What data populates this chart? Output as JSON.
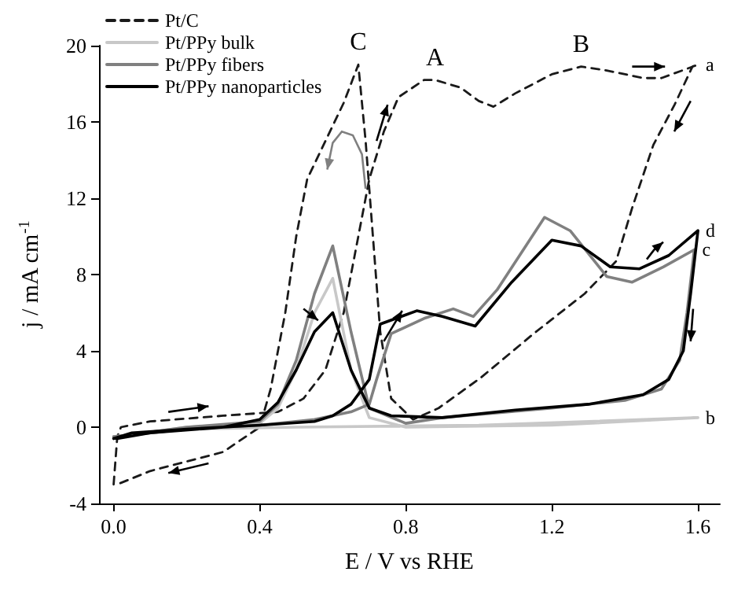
{
  "chart_data": {
    "type": "line",
    "xlabel": "E / V vs RHE",
    "ylabel": "j / mA cm$^{-1}$",
    "xlim": [
      -0.04,
      1.66
    ],
    "xticks": [
      {
        "value": 0,
        "label": "0.0"
      },
      0.4,
      0.8,
      1.2,
      1.6
    ],
    "ylim": [
      -4,
      20
    ],
    "yticks": [
      -4,
      0,
      4,
      8,
      12,
      16,
      20
    ],
    "grid": false,
    "legend": "top left",
    "marker": "none",
    "series": [
      {
        "name": "Pt/C",
        "color": "#1a1a1a",
        "line_style": "dashed",
        "x": [
          0.0,
          0.01,
          0.02,
          0.1,
          0.3,
          0.45,
          0.52,
          0.58,
          0.63,
          0.66,
          0.7,
          0.74,
          0.78,
          0.85,
          0.88,
          0.95,
          1.0,
          1.04,
          1.1,
          1.2,
          1.28,
          1.35,
          1.45,
          1.5,
          1.6,
          1.585,
          1.536,
          1.478,
          1.42,
          1.376,
          1.29,
          1.15,
          1.006,
          0.89,
          0.82,
          0.76,
          0.73,
          0.71,
          0.69,
          0.67,
          0.63,
          0.58,
          0.53,
          0.5,
          0.47,
          0.43,
          0.4,
          0.3,
          0.2,
          0.1,
          0.01
        ],
        "values": [
          -3,
          -0.5,
          0,
          0.3,
          0.6,
          0.8,
          1.5,
          3,
          6,
          9,
          13,
          15.5,
          17.3,
          18.2,
          18.2,
          17.8,
          17.1,
          16.8,
          17.5,
          18.5,
          18.9,
          18.7,
          18.3,
          18.3,
          19,
          18.9,
          16.9,
          14.8,
          11.5,
          8.7,
          7.0,
          4.9,
          2.6,
          1.0,
          0.4,
          1.5,
          5,
          10,
          15,
          19,
          17,
          15,
          13,
          10,
          6,
          2,
          0,
          -1.3,
          -1.8,
          -2.3,
          -3
        ]
      },
      {
        "name": "Pt/PPy bulk",
        "color": "#c8c8c8",
        "line_style": "solid",
        "x": [
          0.0,
          0.2,
          0.5,
          1.0,
          1.6,
          1.2,
          0.8,
          0.7,
          0.65,
          0.6,
          0.55,
          0.5,
          0.45,
          0.4,
          0.2,
          0.01
        ],
        "values": [
          -0.5,
          -0.1,
          0,
          0.1,
          0.5,
          0.1,
          0,
          0.5,
          3,
          7.8,
          6,
          3,
          1,
          0.2,
          0,
          -0.5
        ]
      },
      {
        "name": "Pt/PPy fibers",
        "color": "#808080",
        "line_style": "solid",
        "x": [
          0.0,
          0.2,
          0.4,
          0.55,
          0.65,
          0.7,
          0.72,
          0.76,
          0.85,
          0.93,
          0.985,
          1.05,
          1.18,
          1.25,
          1.35,
          1.42,
          1.505,
          1.59,
          1.57,
          1.55,
          1.5,
          1.4,
          1.2,
          0.9,
          0.8,
          0.7,
          0.65,
          0.6,
          0.55,
          0.5,
          0.45,
          0.4,
          0.2,
          0.01
        ],
        "values": [
          -0.5,
          -0.1,
          0.1,
          0.4,
          0.8,
          1.2,
          2.5,
          4.9,
          5.7,
          6.2,
          5.8,
          7.2,
          11.0,
          10.3,
          7.9,
          7.6,
          8.4,
          9.3,
          6,
          3.5,
          2,
          1.4,
          1.0,
          0.5,
          0.2,
          1,
          5,
          9.5,
          7,
          3.5,
          1.2,
          0.3,
          0,
          -0.5
        ]
      },
      {
        "name": "Pt/PPy nanoparticles",
        "color": "#000000",
        "line_style": "solid",
        "x": [
          0.0,
          0.05,
          0.2,
          0.4,
          0.55,
          0.6,
          0.65,
          0.7,
          0.73,
          0.83,
          0.9,
          0.99,
          1.09,
          1.2,
          1.28,
          1.36,
          1.44,
          1.52,
          1.6,
          1.58,
          1.56,
          1.52,
          1.45,
          1.3,
          1.1,
          0.9,
          0.76,
          0.7,
          0.65,
          0.6,
          0.55,
          0.5,
          0.45,
          0.4,
          0.3,
          0.1,
          0.01
        ],
        "values": [
          -0.6,
          -0.3,
          -0.1,
          0.1,
          0.3,
          0.6,
          1.2,
          2.5,
          5.4,
          6.1,
          5.8,
          5.3,
          7.6,
          9.8,
          9.5,
          8.4,
          8.3,
          9.0,
          10.3,
          7,
          4,
          2.5,
          1.7,
          1.2,
          0.9,
          0.5,
          0.6,
          1,
          3,
          6,
          5,
          3,
          1.3,
          0.4,
          0,
          -0.3,
          -0.6
        ]
      }
    ],
    "annotations": [
      {
        "text": "C",
        "x": 0.67,
        "y": 19
      },
      {
        "text": "A",
        "x": 0.88,
        "y": 18.2
      },
      {
        "text": "B",
        "x": 1.28,
        "y": 18.9
      },
      {
        "text": "a",
        "x": 1.6,
        "y": 19
      },
      {
        "text": "b",
        "x": 1.6,
        "y": 0.5
      },
      {
        "text": "c",
        "x": 1.59,
        "y": 9.3
      },
      {
        "text": "d",
        "x": 1.6,
        "y": 10.3
      }
    ]
  }
}
